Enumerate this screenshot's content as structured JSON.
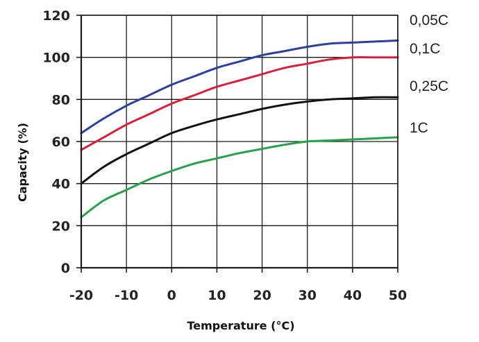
{
  "chart_data": {
    "type": "line",
    "xlabel": "Temperature (°C)",
    "ylabel": "Capacity (%)",
    "xlim": [
      -20,
      50
    ],
    "ylim": [
      0,
      120
    ],
    "x_ticks": [
      "-20",
      "-10",
      "0",
      "10",
      "20",
      "30",
      "40",
      "50"
    ],
    "y_ticks": [
      "0",
      "20",
      "40",
      "60",
      "80",
      "100",
      "120"
    ],
    "grid": true,
    "legend_placement": "right, at line ends",
    "series": [
      {
        "name": "0,05C",
        "color": "#2b3f9c",
        "x": [
          -20,
          -15,
          -10,
          -5,
          0,
          5,
          10,
          15,
          20,
          25,
          30,
          35,
          40,
          45,
          50
        ],
        "y": [
          64,
          71,
          77,
          82,
          87,
          91,
          95,
          98,
          101,
          103,
          105,
          106.5,
          107,
          107.5,
          108
        ]
      },
      {
        "name": "0,1C",
        "color": "#d81f3c",
        "x": [
          -20,
          -15,
          -10,
          -5,
          0,
          5,
          10,
          15,
          20,
          25,
          30,
          35,
          40,
          45,
          50
        ],
        "y": [
          56,
          62,
          68,
          73,
          78,
          82,
          86,
          89,
          92,
          95,
          97,
          99,
          100,
          100,
          100
        ]
      },
      {
        "name": "0,25C",
        "color": "#111111",
        "x": [
          -20,
          -15,
          -10,
          -5,
          0,
          5,
          10,
          15,
          20,
          25,
          30,
          35,
          40,
          45,
          50
        ],
        "y": [
          40,
          48,
          54,
          59,
          64,
          67.5,
          70.5,
          73,
          75.5,
          77.5,
          79,
          80,
          80.5,
          81,
          81
        ]
      },
      {
        "name": "1C",
        "color": "#24a24b",
        "x": [
          -20,
          -15,
          -10,
          -5,
          0,
          5,
          10,
          15,
          20,
          25,
          30,
          35,
          40,
          45,
          50
        ],
        "y": [
          24,
          32,
          37,
          42,
          46,
          49.5,
          52,
          54.5,
          56.5,
          58.5,
          60,
          60.5,
          61,
          61.5,
          62
        ]
      }
    ]
  }
}
